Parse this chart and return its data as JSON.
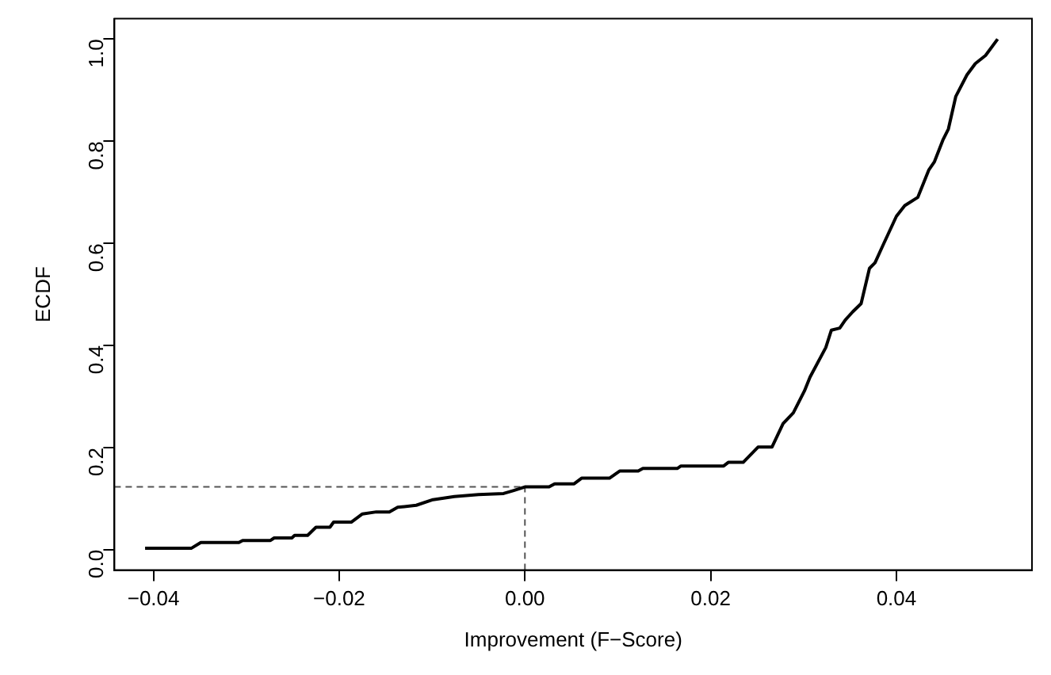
{
  "chart_data": {
    "type": "line",
    "xlabel": "Improvement (F−Score)",
    "ylabel": "ECDF",
    "xlim": [
      -0.0442,
      0.0546
    ],
    "xticks": [
      {
        "value": -0.04,
        "label": "−0.04"
      },
      {
        "value": -0.02,
        "label": "−0.02"
      },
      {
        "value": 0,
        "label": "0.00"
      },
      {
        "value": 0.02,
        "label": "0.02"
      },
      {
        "value": 0.04,
        "label": "0.04"
      }
    ],
    "ylim": [
      -0.04,
      1.04
    ],
    "yticks": [
      {
        "value": 0,
        "label": "0.0"
      },
      {
        "value": 0.2,
        "label": "0.2"
      },
      {
        "value": 0.4,
        "label": "0.4"
      },
      {
        "value": 0.6,
        "label": "0.6"
      },
      {
        "value": 0.8,
        "label": "0.8"
      },
      {
        "value": 1,
        "label": "1.0"
      }
    ],
    "grid": false,
    "legend": false,
    "marker": "none",
    "line_style": "solid",
    "series": [
      {
        "color": "#000000",
        "x": [
          -0.0409,
          -0.0359,
          -0.0349,
          -0.0308,
          -0.0304,
          -0.0274,
          -0.027,
          -0.0251,
          -0.0248,
          -0.0234,
          -0.0225,
          -0.021,
          -0.0206,
          -0.0187,
          -0.0175,
          -0.016,
          -0.0146,
          -0.0137,
          -0.0117,
          -0.0099,
          -0.0076,
          -0.005,
          -0.0023,
          -0.0012,
          0,
          0.0026,
          0.0032,
          0.0053,
          0.0061,
          0.0091,
          0.0102,
          0.0122,
          0.0127,
          0.0164,
          0.0168,
          0.0214,
          0.0219,
          0.0235,
          0.0251,
          0.0266,
          0.0278,
          0.0289,
          0.0301,
          0.0307,
          0.0324,
          0.033,
          0.0339,
          0.0345,
          0.0353,
          0.0362,
          0.0371,
          0.0377,
          0.0385,
          0.04,
          0.0409,
          0.0423,
          0.0435,
          0.0441,
          0.045,
          0.0456,
          0.0464,
          0.0476,
          0.0485,
          0.0496,
          0.0509
        ],
        "values": [
          0.003,
          0.003,
          0.014,
          0.014,
          0.018,
          0.018,
          0.023,
          0.023,
          0.028,
          0.028,
          0.044,
          0.044,
          0.054,
          0.054,
          0.07,
          0.074,
          0.074,
          0.083,
          0.087,
          0.098,
          0.104,
          0.108,
          0.11,
          0.116,
          0.123,
          0.123,
          0.129,
          0.129,
          0.14,
          0.14,
          0.154,
          0.154,
          0.159,
          0.159,
          0.164,
          0.164,
          0.171,
          0.171,
          0.201,
          0.201,
          0.247,
          0.268,
          0.311,
          0.338,
          0.396,
          0.43,
          0.434,
          0.45,
          0.466,
          0.482,
          0.551,
          0.562,
          0.594,
          0.653,
          0.674,
          0.69,
          0.744,
          0.76,
          0.802,
          0.824,
          0.888,
          0.93,
          0.952,
          0.968,
          1.0
        ]
      }
    ],
    "ref_lines": [
      {
        "axis": "y",
        "value": 0.123,
        "color": "#555555",
        "line_style": "dashed"
      },
      {
        "axis": "x",
        "value": 0,
        "color": "#555555",
        "line_style": "dashed"
      }
    ]
  }
}
